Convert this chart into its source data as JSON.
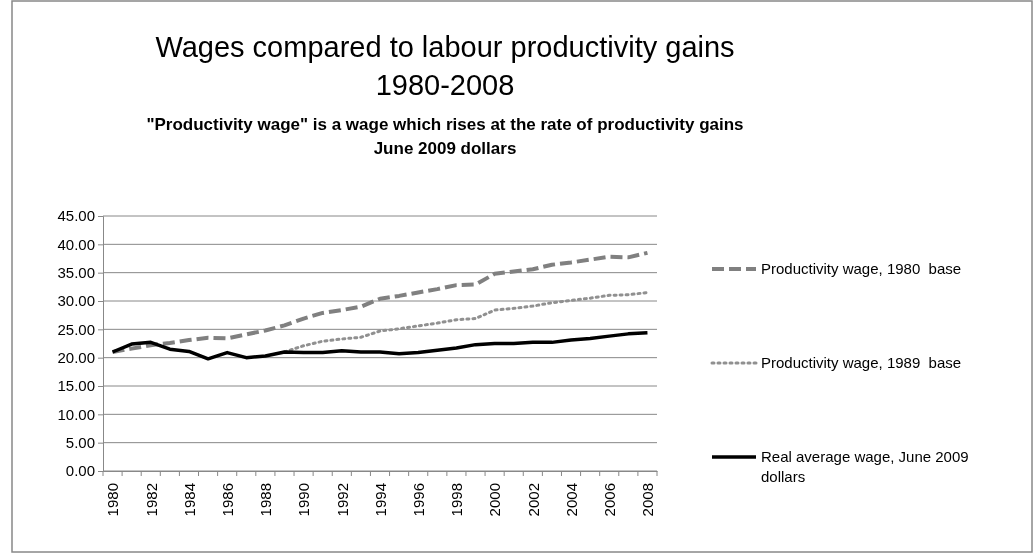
{
  "chart_data": {
    "type": "line",
    "title": "Wages compared to labour productivity gains 1980-2008",
    "subtitle": "\"Productivity wage\" is a wage which rises at the rate of productivity gains\nJune 2009 dollars",
    "categories": [
      "1980",
      null,
      "1982",
      null,
      "1984",
      null,
      "1986",
      null,
      "1988",
      null,
      "1990",
      null,
      "1992",
      null,
      "1994",
      null,
      "1996",
      null,
      "1998",
      null,
      "2000",
      null,
      "2002",
      null,
      "2004",
      null,
      "2006",
      null,
      "2008"
    ],
    "series": [
      {
        "name": "Productivity wage, 1980  base",
        "color": "#808080",
        "line_style": "dashed",
        "values": [
          21.0,
          21.6,
          22.2,
          22.6,
          23.1,
          23.5,
          23.4,
          24.1,
          24.8,
          25.7,
          26.9,
          27.9,
          28.4,
          29.0,
          30.4,
          30.9,
          31.5,
          32.1,
          32.8,
          32.9,
          34.8,
          35.2,
          35.6,
          36.4,
          36.8,
          37.3,
          37.8,
          37.7,
          38.5
        ]
      },
      {
        "name": "Productivity wage, 1989  base",
        "color": "#909090",
        "line_style": "dotted",
        "values": [
          null,
          null,
          null,
          null,
          null,
          null,
          null,
          null,
          null,
          21.0,
          22.1,
          22.9,
          23.3,
          23.6,
          24.7,
          25.1,
          25.6,
          26.1,
          26.7,
          26.9,
          28.4,
          28.7,
          29.1,
          29.7,
          30.1,
          30.5,
          31.0,
          31.1,
          31.5
        ]
      },
      {
        "name": "Real average wage, June 2009 dollars",
        "color": "#000000",
        "line_style": "solid",
        "values": [
          21.0,
          22.4,
          22.7,
          21.5,
          21.1,
          19.8,
          20.9,
          20.0,
          20.3,
          21.0,
          20.9,
          20.9,
          21.2,
          21.0,
          21.0,
          20.7,
          20.9,
          21.3,
          21.7,
          22.3,
          22.5,
          22.5,
          22.7,
          22.7,
          23.1,
          23.4,
          23.8,
          24.2,
          24.4
        ]
      }
    ],
    "ylim": [
      0,
      45
    ],
    "yticks": [
      {
        "value": 0,
        "label": "0.00"
      },
      {
        "value": 5,
        "label": "5.00"
      },
      {
        "value": 10,
        "label": "10.00"
      },
      {
        "value": 15,
        "label": "15.00"
      },
      {
        "value": 20,
        "label": "20.00"
      },
      {
        "value": 25,
        "label": "25.00"
      },
      {
        "value": 30,
        "label": "30.00"
      },
      {
        "value": 35,
        "label": "35.00"
      },
      {
        "value": 40,
        "label": "40.00"
      },
      {
        "value": 45,
        "label": "45.00"
      }
    ],
    "grid": "y",
    "legend": "right",
    "marker": "none"
  }
}
